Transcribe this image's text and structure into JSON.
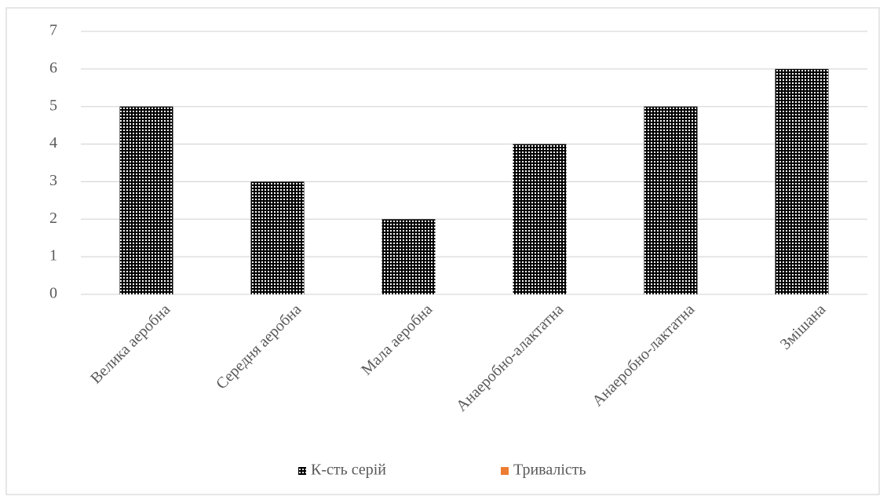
{
  "chart_data": {
    "type": "bar",
    "categories": [
      "Велика аеробна",
      "Середня аеробна",
      "Мала аеробна",
      "Анаеробно-алактатна",
      "Анаеробно-лактатна",
      "Змішана"
    ],
    "series": [
      {
        "name": "К-сть серій",
        "color": "#000000",
        "pattern": "checkered",
        "values": [
          5,
          3,
          2,
          4,
          5,
          6
        ]
      },
      {
        "name": "Тривалість",
        "color": "#ed7d31",
        "values": [
          null,
          null,
          null,
          null,
          null,
          null
        ]
      }
    ],
    "ylim": [
      0,
      7
    ],
    "yticks": [
      0,
      1,
      2,
      3,
      4,
      5,
      6,
      7
    ],
    "grid": true,
    "legend": "bottom"
  }
}
